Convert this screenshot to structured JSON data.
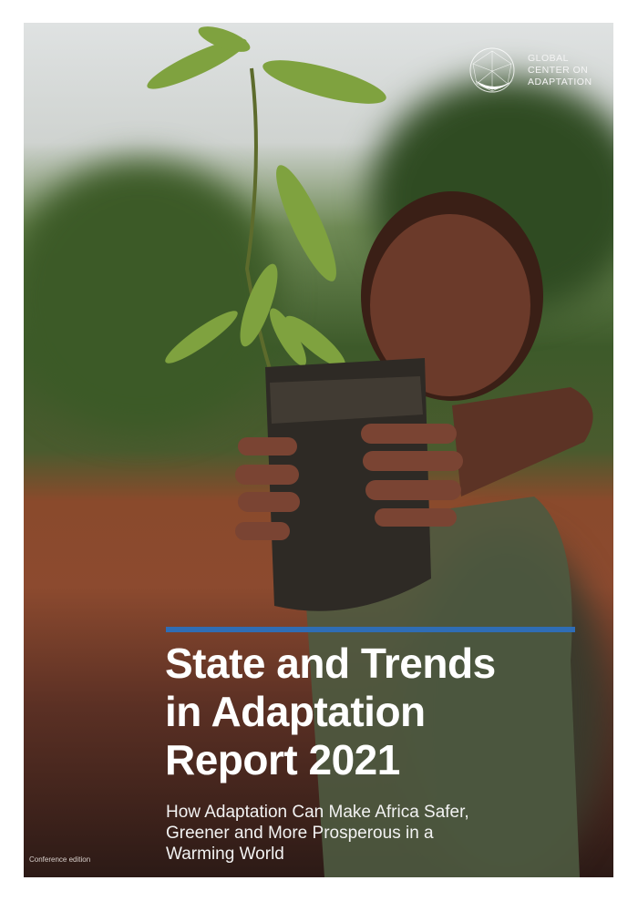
{
  "logo": {
    "name_lines": [
      "GLOBAL",
      "CENTER ON",
      "ADAPTATION"
    ],
    "icon": "globe-icon"
  },
  "title_lines": [
    "State and Trends",
    "in Adaptation",
    "Report 2021"
  ],
  "subtitle_lines": [
    "How Adaptation Can Make Africa Safer,",
    "Greener and More Prosperous in a",
    "Warming World"
  ],
  "edition": "Conference edition",
  "colors": {
    "accent_bar": "#2f6db5",
    "text": "#ffffff"
  }
}
